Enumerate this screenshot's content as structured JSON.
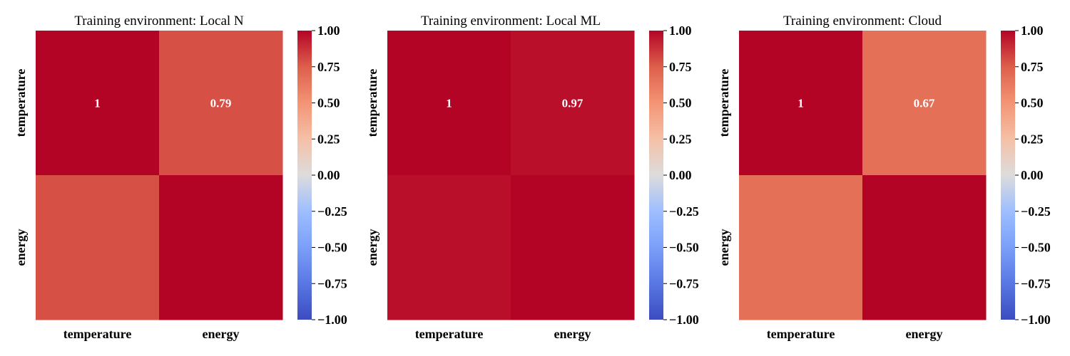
{
  "chart_data": [
    {
      "type": "heatmap",
      "title": "Training environment: Local N",
      "x_labels": [
        "temperature",
        "energy"
      ],
      "y_labels": [
        "temperature",
        "energy"
      ],
      "matrix": [
        [
          1.0,
          0.79
        ],
        [
          0.79,
          1.0
        ]
      ],
      "annotations": [
        [
          "1",
          "0.79"
        ],
        [
          "",
          ""
        ]
      ],
      "colormap": "coolwarm",
      "vmin": -1,
      "vmax": 1,
      "colorbar_ticks": [
        "1.00",
        "0.75",
        "0.50",
        "0.25",
        "0.00",
        "−0.25",
        "−0.50",
        "−0.75",
        "−1.00"
      ]
    },
    {
      "type": "heatmap",
      "title": "Training environment: Local ML",
      "x_labels": [
        "temperature",
        "energy"
      ],
      "y_labels": [
        "temperature",
        "energy"
      ],
      "matrix": [
        [
          1.0,
          0.97
        ],
        [
          0.97,
          1.0
        ]
      ],
      "annotations": [
        [
          "1",
          "0.97"
        ],
        [
          "",
          ""
        ]
      ],
      "colormap": "coolwarm",
      "vmin": -1,
      "vmax": 1,
      "colorbar_ticks": [
        "1.00",
        "0.75",
        "0.50",
        "0.25",
        "0.00",
        "−0.25",
        "−0.50",
        "−0.75",
        "−1.00"
      ]
    },
    {
      "type": "heatmap",
      "title": "Training environment: Cloud",
      "x_labels": [
        "temperature",
        "energy"
      ],
      "y_labels": [
        "temperature",
        "energy"
      ],
      "matrix": [
        [
          1.0,
          0.67
        ],
        [
          0.67,
          1.0
        ]
      ],
      "annotations": [
        [
          "1",
          "0.67"
        ],
        [
          "",
          ""
        ]
      ],
      "colormap": "coolwarm",
      "vmin": -1,
      "vmax": 1,
      "colorbar_ticks": [
        "1.00",
        "0.75",
        "0.50",
        "0.25",
        "0.00",
        "−0.25",
        "−0.50",
        "−0.75",
        "−1.00"
      ]
    }
  ]
}
